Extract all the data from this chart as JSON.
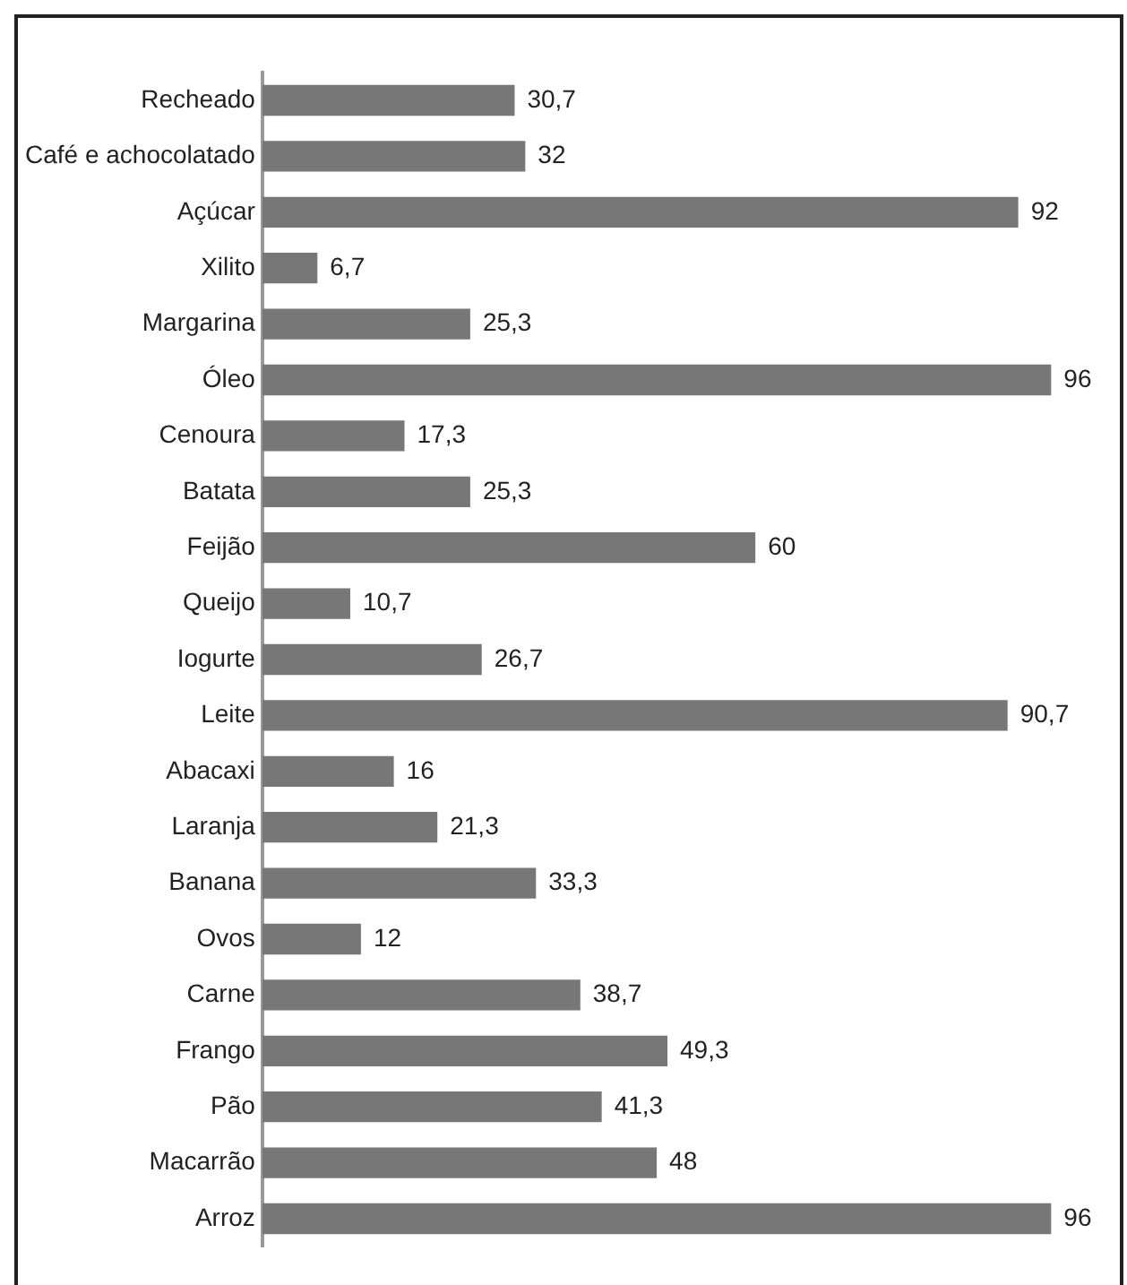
{
  "chart_data": {
    "type": "bar",
    "orientation": "horizontal",
    "categories": [
      "Recheado",
      "Café e achocolatado",
      "Açúcar",
      "Xilito",
      "Margarina",
      "Óleo",
      "Cenoura",
      "Batata",
      "Feijão",
      "Queijo",
      "Iogurte",
      "Leite",
      "Abacaxi",
      "Laranja",
      "Banana",
      "Ovos",
      "Carne",
      "Frango",
      "Pão",
      "Macarrão",
      "Arroz"
    ],
    "values": [
      30.7,
      32,
      92,
      6.7,
      25.3,
      96,
      17.3,
      25.3,
      60,
      10.7,
      26.7,
      90.7,
      16,
      21.3,
      33.3,
      12,
      38.7,
      49.3,
      41.3,
      48,
      96
    ],
    "value_labels": [
      "30,7",
      "32",
      "92",
      "6,7",
      "25,3",
      "96",
      "17,3",
      "25,3",
      "60",
      "10,7",
      "26,7",
      "90,7",
      "16",
      "21,3",
      "33,3",
      "12",
      "38,7",
      "49,3",
      "41,3",
      "48",
      "96"
    ],
    "color": "#777777",
    "legend": false,
    "tick_labels": "y"
  }
}
